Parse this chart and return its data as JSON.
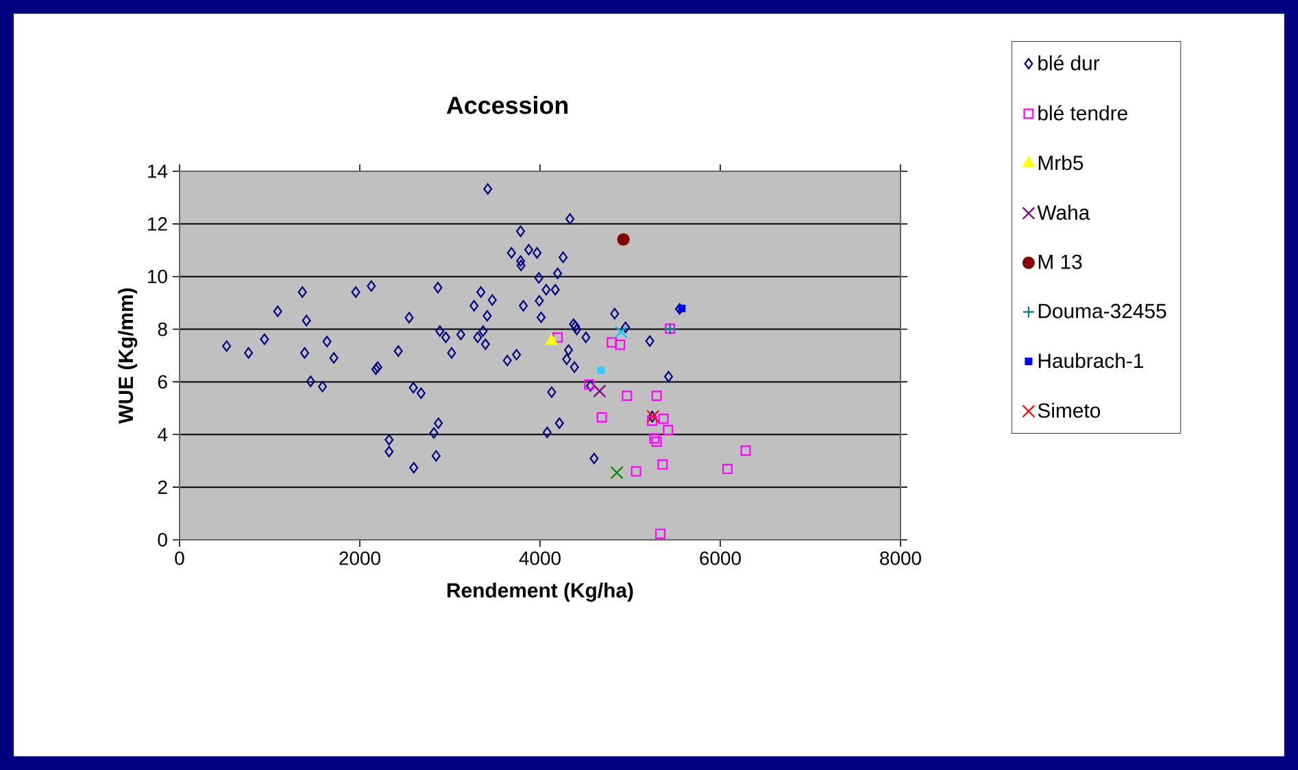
{
  "chart_data": {
    "type": "scatter",
    "title": "Accession",
    "xlabel": "Rendement (Kg/ha)",
    "ylabel": "WUE (Kg/mm)",
    "xlim": [
      0,
      8000
    ],
    "xticks": [
      0,
      2000,
      4000,
      6000,
      8000
    ],
    "ylim": [
      0,
      14
    ],
    "yticks": [
      0,
      2,
      4,
      6,
      8,
      10,
      12,
      14
    ],
    "grid": "y",
    "legend": "right",
    "series": [
      {
        "name": "blé dur",
        "color": "#000080",
        "marker": "diamond",
        "x": [
          522,
          765,
          942,
          1089,
          1363,
          1408,
          1388,
          1454,
          1586,
          1636,
          1712,
          1955,
          2128,
          2178,
          2199,
          2325,
          2325,
          2427,
          2548,
          2594,
          2680,
          2599,
          2822,
          2872,
          2847,
          2867,
          2888,
          2954,
          3019,
          3121,
          3268,
          3344,
          3470,
          3414,
          3368,
          3308,
          3394,
          3420,
          3637,
          3739,
          3784,
          3683,
          3784,
          3789,
          3875,
          3815,
          4332,
          3967,
          4256,
          4195,
          3987,
          4068,
          4169,
          3992,
          4012,
          4372,
          4392,
          4408,
          4509,
          4316,
          4296,
          4382,
          4129,
          4215,
          4079,
          4600,
          4828,
          4949,
          5218,
          5426,
          5548,
          4560,
          5244
        ],
        "values": [
          7.36,
          7.1,
          7.62,
          8.68,
          9.41,
          8.33,
          7.1,
          6.02,
          5.82,
          7.53,
          6.91,
          9.41,
          9.64,
          6.48,
          6.56,
          3.8,
          3.35,
          7.17,
          8.44,
          5.78,
          5.57,
          2.74,
          4.06,
          4.43,
          3.19,
          9.58,
          7.93,
          7.69,
          7.1,
          7.8,
          8.89,
          9.41,
          9.11,
          8.51,
          7.93,
          7.69,
          7.43,
          13.33,
          6.81,
          7.03,
          11.72,
          10.9,
          10.59,
          10.42,
          11.02,
          8.89,
          12.19,
          10.9,
          10.73,
          10.12,
          9.95,
          9.5,
          9.5,
          9.08,
          8.45,
          8.19,
          8.11,
          7.99,
          7.69,
          7.21,
          6.86,
          6.56,
          5.61,
          4.43,
          4.08,
          3.09,
          8.59,
          8.07,
          7.55,
          6.2,
          8.77,
          5.85,
          4.68
        ]
      },
      {
        "name": "blé tendre",
        "color": "#ff00ff",
        "marker": "square",
        "x": [
          4195,
          4797,
          4888,
          5442,
          4545,
          4965,
          5294,
          4686,
          5244,
          5370,
          5421,
          5269,
          5294,
          5360,
          5066,
          6080,
          6282,
          5335
        ],
        "values": [
          7.68,
          7.5,
          7.41,
          8.02,
          5.9,
          5.47,
          5.47,
          4.65,
          4.52,
          4.6,
          4.17,
          3.85,
          3.73,
          2.86,
          2.6,
          2.69,
          3.39,
          0.23
        ]
      },
      {
        "name": "Mrb5",
        "color": "#ffff00",
        "marker": "triangle",
        "x": [
          4128
        ],
        "values": [
          7.55
        ]
      },
      {
        "name": "Waha",
        "color": "#800080",
        "marker": "cross",
        "x": [
          4661
        ],
        "values": [
          5.65
        ]
      },
      {
        "name": "M 13",
        "color": "#800000",
        "marker": "circle",
        "x": [
          4925
        ],
        "values": [
          11.41
        ]
      },
      {
        "name": "Douma-32455",
        "color": "#008080",
        "marker": "plus",
        "x": [
          5442
        ],
        "values": [
          8.02
        ]
      },
      {
        "name": "Haubrach-1",
        "color": "#0000ff",
        "x": [
          5573
        ],
        "values": [
          8.79
        ]
      },
      {
        "name": "Simeto",
        "color": "#ff0000",
        "marker": "cross",
        "x": [
          5253
        ],
        "values": [
          4.69
        ]
      },
      {
        "color": "#00ccff",
        "marker": "cross",
        "x": [
          4899
        ],
        "values": [
          7.9
        ]
      },
      {
        "color": "#33ccff",
        "x": [
          4676
        ],
        "values": [
          6.44
        ]
      },
      {
        "color": "#008000",
        "marker": "cross",
        "x": [
          4853
        ],
        "values": [
          2.55
        ]
      }
    ]
  }
}
